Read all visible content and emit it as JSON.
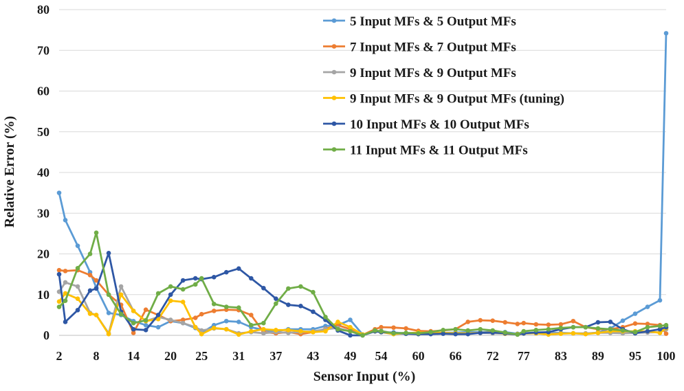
{
  "chart_data": {
    "type": "line",
    "xlabel": "Sensor Input (%)",
    "ylabel": "Relative Error (%)",
    "ylim": [
      0,
      80
    ],
    "yticks": [
      0,
      10,
      20,
      30,
      40,
      50,
      60,
      70,
      80
    ],
    "xtick_labels": [
      "2",
      "8",
      "14",
      "20",
      "25",
      "31",
      "37",
      "43",
      "49",
      "54",
      "60",
      "66",
      "72",
      "77",
      "83",
      "89",
      "95",
      "100"
    ],
    "grid": "horizontal",
    "legend_position": "top-right",
    "x": [
      2,
      3,
      5,
      7,
      8,
      10,
      12,
      14,
      16,
      18,
      20,
      22,
      24,
      25,
      27,
      29,
      31,
      33,
      35,
      37,
      39,
      41,
      43,
      45,
      47,
      49,
      51,
      53,
      54,
      56,
      58,
      60,
      62,
      64,
      66,
      68,
      70,
      72,
      74,
      76,
      77,
      79,
      81,
      83,
      85,
      87,
      89,
      91,
      93,
      95,
      97,
      99,
      100
    ],
    "series": [
      {
        "name": "5 Input MFs & 5 Output MFs",
        "color": "#5b9bd5",
        "values": [
          35,
          28.3,
          22,
          15.5,
          11.7,
          5.5,
          5,
          3.5,
          2.5,
          2,
          3.5,
          3,
          1.8,
          0.6,
          2.5,
          3.5,
          3.3,
          2,
          1.3,
          1,
          1.5,
          1.5,
          1.5,
          2.3,
          2.5,
          3.8,
          0.2,
          1,
          0.8,
          0.7,
          0.5,
          0.4,
          0.5,
          0.6,
          0.7,
          0.8,
          0.8,
          0.9,
          0.8,
          0.4,
          0.5,
          0.5,
          0.6,
          0.6,
          0.5,
          0.4,
          0.7,
          1.7,
          3.6,
          5.3,
          7,
          8.6,
          74.2
        ]
      },
      {
        "name": "7 Input MFs & 7 Output MFs",
        "color": "#ed7d31",
        "values": [
          16,
          15.8,
          16,
          14.8,
          13.5,
          10,
          7.5,
          0.6,
          6.3,
          5,
          3.5,
          3.8,
          4.3,
          5.2,
          6,
          6.3,
          6.2,
          5,
          0.8,
          0.5,
          0.8,
          0.3,
          0.8,
          1.6,
          2.5,
          1.5,
          0.1,
          1.5,
          2,
          1.9,
          1.7,
          1.1,
          1,
          1.2,
          1.5,
          3.3,
          3.7,
          3.6,
          3.2,
          2.8,
          3,
          2.7,
          2.6,
          2.7,
          3.5,
          2,
          1.5,
          1.5,
          2,
          2.9,
          2.8,
          2.5,
          0.4
        ]
      },
      {
        "name": "9 Input MFs & 9 Output MFs",
        "color": "#a5a5a5",
        "values": [
          10.7,
          13,
          12,
          5.5,
          5,
          0.5,
          12,
          6,
          3.5,
          4.5,
          3.8,
          3,
          2,
          1.2,
          1.7,
          1.5,
          0.5,
          0.8,
          0.5,
          0.8,
          0.6,
          0.8,
          1,
          1.5,
          1.8,
          1,
          0.2,
          1,
          1.1,
          0.5,
          0.4,
          0.4,
          0.4,
          0.5,
          0.5,
          0.5,
          0.6,
          0.5,
          0.4,
          0.2,
          0.4,
          0.5,
          0.5,
          0.5,
          0.5,
          0.5,
          0.6,
          0.6,
          0.5,
          0.6,
          0.7,
          0.8,
          1.5
        ]
      },
      {
        "name": "9 Input MFs & 9 Output MFs (tuning)",
        "color": "#ffc000",
        "values": [
          8.3,
          10.3,
          9,
          5.3,
          5,
          0.3,
          10,
          6,
          3.5,
          4,
          8.5,
          8.2,
          2,
          0.3,
          1.8,
          1.5,
          0.2,
          1,
          1.5,
          1.3,
          1.3,
          1,
          0.8,
          1,
          3.3,
          2,
          0.2,
          1,
          0.8,
          0.3,
          0.5,
          0.7,
          0.7,
          0.6,
          0.5,
          0.5,
          0.6,
          0.8,
          0.4,
          0.3,
          0.5,
          0.5,
          0.2,
          0.4,
          0.5,
          0.3,
          0.6,
          1,
          1,
          1,
          1,
          0.6,
          1.8
        ]
      },
      {
        "name": "10 Input MFs & 10 Output MFs",
        "color": "#2e57a5",
        "values": [
          15,
          3.3,
          6.2,
          11,
          11.5,
          20.2,
          5.8,
          1.5,
          1.3,
          5,
          10,
          13.5,
          14,
          13.8,
          14.3,
          15.5,
          16.4,
          14,
          11.6,
          9,
          7.5,
          7.2,
          5.8,
          3.8,
          1.2,
          0,
          0,
          1,
          0.8,
          0.6,
          0.4,
          0.3,
          0.3,
          0.4,
          0.3,
          0.3,
          0.6,
          0.7,
          0.5,
          0.2,
          0.5,
          0.7,
          0.8,
          1.5,
          2,
          2,
          3.2,
          3.3,
          1.5,
          0.5,
          1,
          1.5,
          2
        ]
      },
      {
        "name": "11 Input MFs & 11 Output MFs",
        "color": "#70ad47",
        "values": [
          7,
          8.5,
          16.5,
          20,
          25.2,
          10,
          5.2,
          3,
          3.7,
          10.3,
          12,
          11.3,
          12.5,
          14,
          7.7,
          7,
          6.8,
          2.5,
          3,
          7.8,
          11.5,
          12,
          10.6,
          4.5,
          1.5,
          1,
          0,
          1.2,
          1,
          0.5,
          0.6,
          0.5,
          0.8,
          1.3,
          1.5,
          1.2,
          1.5,
          1.2,
          0.7,
          0.2,
          1,
          1.3,
          1.5,
          1.8,
          2,
          2,
          1.7,
          1.5,
          1.2,
          0.8,
          2,
          2.3,
          2.5
        ]
      }
    ]
  }
}
